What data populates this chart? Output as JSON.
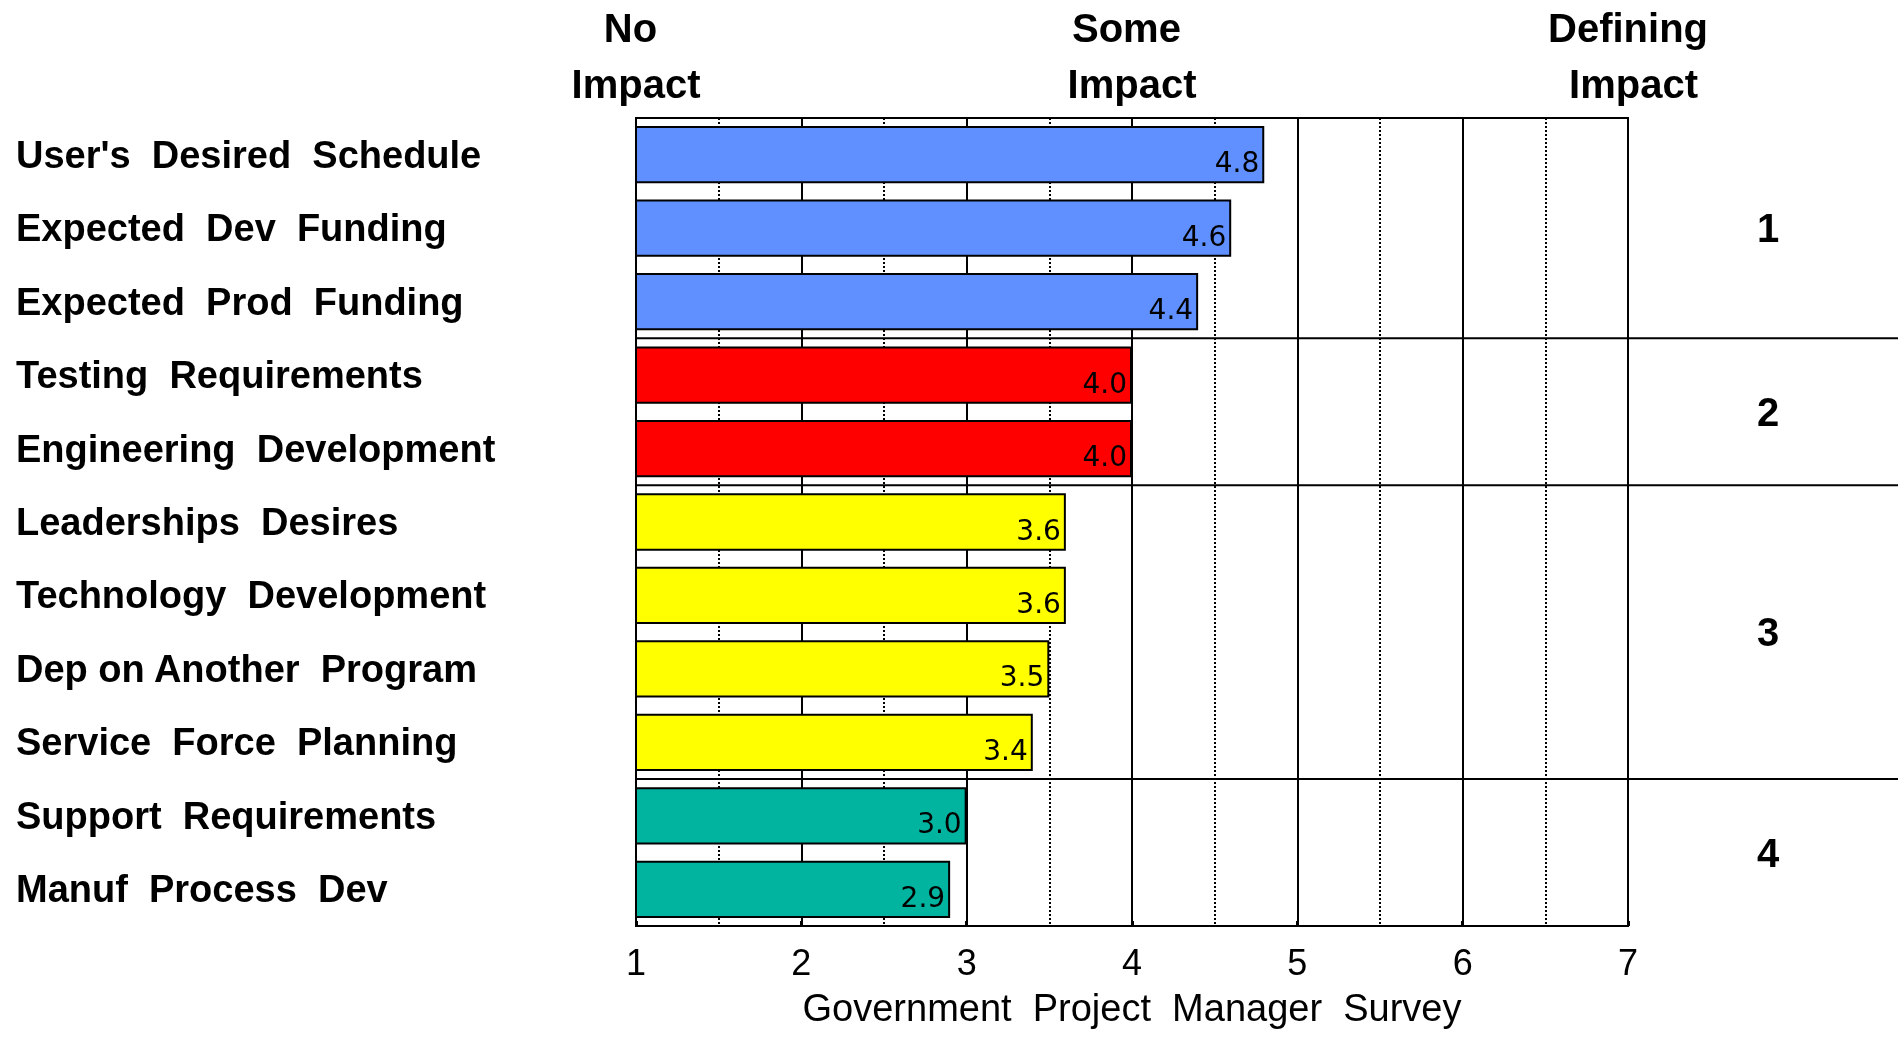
{
  "chart_data": {
    "type": "bar",
    "orientation": "horizontal",
    "xlabel": "Government  Project  Manager  Survey",
    "categories": [
      "User's  Desired  Schedule",
      "Expected  Dev  Funding",
      "Expected  Prod  Funding",
      "Testing  Requirements",
      "Engineering  Development",
      "Leaderships  Desires",
      "Technology  Development",
      "Dep on Another  Program",
      "Service  Force  Planning",
      "Support  Requirements",
      "Manuf  Process  Dev"
    ],
    "values": [
      4.8,
      4.6,
      4.4,
      4.0,
      4.0,
      3.6,
      3.6,
      3.5,
      3.4,
      3.0,
      2.9
    ],
    "value_labels": [
      "4.8",
      "4.6",
      "4.4",
      "4.0",
      "4.0",
      "3.6",
      "3.6",
      "3.5",
      "3.4",
      "3.0",
      "2.9"
    ],
    "colors": [
      "#6090ff",
      "#6090ff",
      "#6090ff",
      "#ff0000",
      "#ff0000",
      "#ffff00",
      "#ffff00",
      "#ffff00",
      "#ffff00",
      "#00b4a0",
      "#00b4a0"
    ],
    "xlim": [
      1,
      7
    ],
    "xticks": [
      1,
      2,
      3,
      4,
      5,
      6,
      7
    ],
    "annotations": [
      "No Impact",
      "Some Impact",
      "Defining Impact",
      "1",
      "2",
      "3",
      "4"
    ],
    "grid": "x"
  }
}
